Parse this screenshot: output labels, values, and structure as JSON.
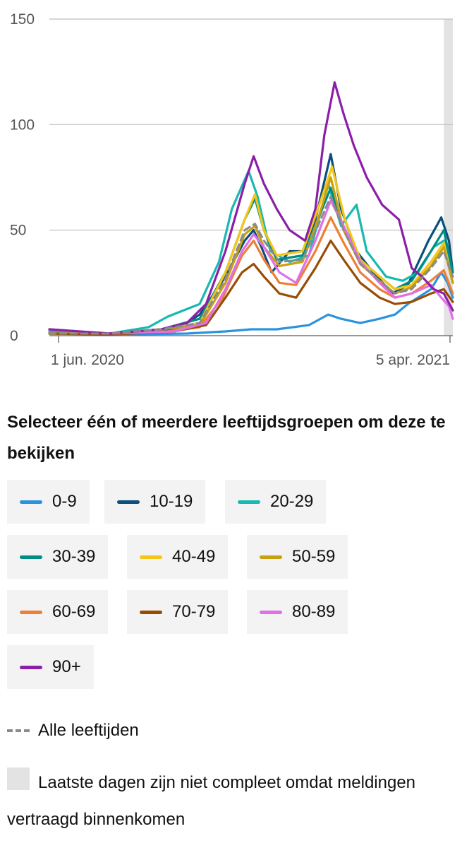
{
  "chart_data": {
    "type": "line",
    "x_tick_labels": [
      "1 jun. 2020",
      "5 apr. 2021"
    ],
    "y_ticks": [
      0,
      50,
      100,
      150
    ],
    "ylim": [
      0,
      150
    ],
    "x_range_days": [
      -7,
      307
    ],
    "incomplete_region_days": [
      300,
      307
    ],
    "series": [
      {
        "name": "0-9",
        "color": "#2b93dd",
        "points": [
          [
            -7,
            2
          ],
          [
            40,
            0.5
          ],
          [
            100,
            1
          ],
          [
            130,
            2
          ],
          [
            150,
            3
          ],
          [
            170,
            3
          ],
          [
            195,
            5
          ],
          [
            210,
            10
          ],
          [
            220,
            8
          ],
          [
            235,
            6
          ],
          [
            250,
            8
          ],
          [
            262,
            10
          ],
          [
            272,
            15
          ],
          [
            290,
            22
          ],
          [
            298,
            30
          ],
          [
            303,
            25
          ],
          [
            307,
            18
          ]
        ]
      },
      {
        "name": "10-19",
        "color": "#0a4f7d",
        "points": [
          [
            -7,
            1
          ],
          [
            40,
            1
          ],
          [
            75,
            2
          ],
          [
            95,
            4
          ],
          [
            110,
            10
          ],
          [
            130,
            28
          ],
          [
            145,
            45
          ],
          [
            152,
            50
          ],
          [
            158,
            42
          ],
          [
            166,
            30
          ],
          [
            180,
            40
          ],
          [
            190,
            40
          ],
          [
            200,
            55
          ],
          [
            212,
            86
          ],
          [
            220,
            60
          ],
          [
            232,
            40
          ],
          [
            245,
            30
          ],
          [
            260,
            20
          ],
          [
            272,
            24
          ],
          [
            288,
            45
          ],
          [
            298,
            56
          ],
          [
            304,
            45
          ],
          [
            307,
            30
          ]
        ]
      },
      {
        "name": "20-29",
        "color": "#17b9b0",
        "points": [
          [
            -7,
            2
          ],
          [
            40,
            1
          ],
          [
            70,
            4
          ],
          [
            85,
            9
          ],
          [
            110,
            15
          ],
          [
            125,
            35
          ],
          [
            135,
            60
          ],
          [
            148,
            78
          ],
          [
            155,
            66
          ],
          [
            165,
            40
          ],
          [
            180,
            35
          ],
          [
            195,
            38
          ],
          [
            210,
            72
          ],
          [
            220,
            52
          ],
          [
            232,
            62
          ],
          [
            240,
            40
          ],
          [
            255,
            28
          ],
          [
            268,
            26
          ],
          [
            280,
            30
          ],
          [
            292,
            42
          ],
          [
            300,
            45
          ],
          [
            307,
            30
          ]
        ]
      },
      {
        "name": "30-39",
        "color": "#008d86",
        "points": [
          [
            -7,
            1
          ],
          [
            40,
            1
          ],
          [
            80,
            3
          ],
          [
            110,
            8
          ],
          [
            130,
            30
          ],
          [
            145,
            55
          ],
          [
            153,
            65
          ],
          [
            160,
            50
          ],
          [
            170,
            36
          ],
          [
            190,
            38
          ],
          [
            202,
            55
          ],
          [
            212,
            70
          ],
          [
            222,
            50
          ],
          [
            235,
            36
          ],
          [
            250,
            28
          ],
          [
            262,
            22
          ],
          [
            275,
            26
          ],
          [
            290,
            40
          ],
          [
            300,
            50
          ],
          [
            307,
            30
          ]
        ]
      },
      {
        "name": "40-49",
        "color": "#f5c518",
        "points": [
          [
            -7,
            1
          ],
          [
            40,
            1
          ],
          [
            80,
            3
          ],
          [
            110,
            6
          ],
          [
            130,
            30
          ],
          [
            145,
            55
          ],
          [
            153,
            67
          ],
          [
            160,
            50
          ],
          [
            170,
            38
          ],
          [
            190,
            40
          ],
          [
            202,
            60
          ],
          [
            213,
            80
          ],
          [
            223,
            55
          ],
          [
            235,
            36
          ],
          [
            250,
            28
          ],
          [
            262,
            22
          ],
          [
            275,
            24
          ],
          [
            290,
            35
          ],
          [
            300,
            44
          ],
          [
            307,
            25
          ]
        ]
      },
      {
        "name": "50-59",
        "color": "#c8a010",
        "points": [
          [
            -7,
            1
          ],
          [
            40,
            1
          ],
          [
            80,
            3
          ],
          [
            110,
            5
          ],
          [
            130,
            25
          ],
          [
            145,
            48
          ],
          [
            153,
            52
          ],
          [
            160,
            42
          ],
          [
            172,
            33
          ],
          [
            190,
            35
          ],
          [
            202,
            55
          ],
          [
            212,
            75
          ],
          [
            222,
            50
          ],
          [
            235,
            34
          ],
          [
            250,
            26
          ],
          [
            262,
            20
          ],
          [
            275,
            23
          ],
          [
            290,
            33
          ],
          [
            300,
            42
          ],
          [
            307,
            25
          ]
        ]
      },
      {
        "name": "60-69",
        "color": "#ee7f35",
        "points": [
          [
            -7,
            1
          ],
          [
            40,
            1
          ],
          [
            85,
            2
          ],
          [
            110,
            4
          ],
          [
            128,
            18
          ],
          [
            143,
            38
          ],
          [
            152,
            45
          ],
          [
            160,
            36
          ],
          [
            172,
            25
          ],
          [
            185,
            24
          ],
          [
            200,
            40
          ],
          [
            212,
            56
          ],
          [
            222,
            44
          ],
          [
            235,
            30
          ],
          [
            250,
            22
          ],
          [
            262,
            18
          ],
          [
            275,
            20
          ],
          [
            290,
            26
          ],
          [
            300,
            31
          ],
          [
            307,
            20
          ]
        ]
      },
      {
        "name": "70-79",
        "color": "#994c03",
        "points": [
          [
            -7,
            1
          ],
          [
            40,
            0.5
          ],
          [
            90,
            2
          ],
          [
            115,
            5
          ],
          [
            130,
            18
          ],
          [
            143,
            30
          ],
          [
            152,
            34
          ],
          [
            160,
            28
          ],
          [
            172,
            20
          ],
          [
            185,
            18
          ],
          [
            200,
            32
          ],
          [
            212,
            45
          ],
          [
            222,
            36
          ],
          [
            235,
            25
          ],
          [
            250,
            18
          ],
          [
            262,
            15
          ],
          [
            275,
            16
          ],
          [
            290,
            20
          ],
          [
            300,
            22
          ],
          [
            307,
            16
          ]
        ]
      },
      {
        "name": "80-89",
        "color": "#e06fe8",
        "points": [
          [
            -7,
            3
          ],
          [
            40,
            1
          ],
          [
            90,
            2
          ],
          [
            115,
            6
          ],
          [
            130,
            22
          ],
          [
            143,
            40
          ],
          [
            152,
            48
          ],
          [
            160,
            42
          ],
          [
            172,
            30
          ],
          [
            185,
            25
          ],
          [
            200,
            45
          ],
          [
            212,
            64
          ],
          [
            222,
            52
          ],
          [
            235,
            35
          ],
          [
            250,
            25
          ],
          [
            262,
            18
          ],
          [
            275,
            20
          ],
          [
            290,
            24
          ],
          [
            298,
            18
          ],
          [
            304,
            14
          ],
          [
            307,
            8
          ]
        ]
      },
      {
        "name": "90+",
        "color": "#8b1fa8",
        "points": [
          [
            -7,
            3
          ],
          [
            40,
            1
          ],
          [
            80,
            3
          ],
          [
            100,
            6
          ],
          [
            115,
            15
          ],
          [
            130,
            40
          ],
          [
            145,
            72
          ],
          [
            152,
            85
          ],
          [
            160,
            72
          ],
          [
            170,
            60
          ],
          [
            180,
            50
          ],
          [
            192,
            45
          ],
          [
            200,
            60
          ],
          [
            207,
            95
          ],
          [
            215,
            120
          ],
          [
            222,
            105
          ],
          [
            230,
            90
          ],
          [
            240,
            75
          ],
          [
            252,
            62
          ],
          [
            265,
            55
          ],
          [
            275,
            32
          ],
          [
            283,
            28
          ],
          [
            292,
            22
          ],
          [
            300,
            20
          ],
          [
            307,
            12
          ]
        ]
      },
      {
        "name": "Alle leeftijden",
        "color": "#8a8a8a",
        "dashed": true,
        "points": [
          [
            -7,
            1
          ],
          [
            40,
            1
          ],
          [
            80,
            3
          ],
          [
            110,
            6
          ],
          [
            130,
            27
          ],
          [
            145,
            50
          ],
          [
            153,
            53
          ],
          [
            160,
            45
          ],
          [
            172,
            35
          ],
          [
            190,
            36
          ],
          [
            202,
            52
          ],
          [
            212,
            66
          ],
          [
            222,
            50
          ],
          [
            235,
            34
          ],
          [
            250,
            26
          ],
          [
            262,
            20
          ],
          [
            275,
            22
          ],
          [
            290,
            32
          ],
          [
            300,
            40
          ],
          [
            307,
            28
          ]
        ]
      }
    ]
  },
  "legend": {
    "heading": "Selecteer één of meerdere leeftijdsgroepen om deze te bekijken",
    "buttons": [
      {
        "label": "0-9",
        "color": "#2b93dd"
      },
      {
        "label": "10-19",
        "color": "#0a4f7d"
      },
      {
        "label": "20-29",
        "color": "#17b9b0"
      },
      {
        "label": "30-39",
        "color": "#008d86"
      },
      {
        "label": "40-49",
        "color": "#f5c518"
      },
      {
        "label": "50-59",
        "color": "#c8a010"
      },
      {
        "label": "60-69",
        "color": "#ee7f35"
      },
      {
        "label": "70-79",
        "color": "#994c03"
      },
      {
        "label": "80-89",
        "color": "#e06fe8"
      },
      {
        "label": "90+",
        "color": "#8b1fa8"
      }
    ],
    "all_ages_label": "Alle leeftijden",
    "incomplete_note": "Laatste dagen zijn niet compleet omdat meldingen vertraagd binnenkomen"
  }
}
